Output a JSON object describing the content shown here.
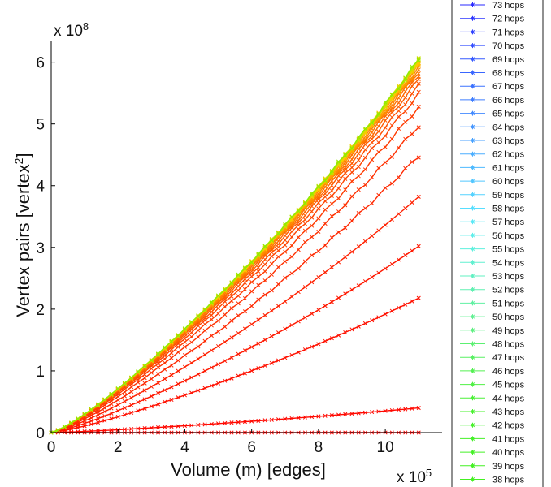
{
  "chart_data": {
    "type": "line",
    "title": "",
    "xlabel": "Volume (m) [edges]",
    "ylabel": "Vertex pairs [vertex",
    "ylabel_sup": "2",
    "ylabel_close": "]",
    "x_multiplier_text": "x 10",
    "x_multiplier_exp": "5",
    "y_multiplier_text": "x 10",
    "y_multiplier_exp": "8",
    "x_scale": 100000,
    "y_scale": 100000000,
    "xlim": [
      0,
      11.7
    ],
    "ylim": [
      0,
      6.35
    ],
    "x_ticks": [
      0,
      2,
      4,
      6,
      8,
      10
    ],
    "x_tick_labels": [
      "0",
      "2",
      "4",
      "6",
      "8",
      "10"
    ],
    "y_ticks": [
      0,
      1,
      2,
      3,
      4,
      5,
      6
    ],
    "y_tick_labels": [
      "0",
      "1",
      "2",
      "3",
      "4",
      "5",
      "6"
    ],
    "x_end": 11,
    "grid": false,
    "legend_position": "outside-right",
    "curve_final_values_1e8": [
      0.0,
      0.4,
      2.18,
      3.02,
      3.82,
      4.48,
      4.97,
      5.28,
      5.49,
      5.62,
      5.72,
      5.79,
      5.85,
      5.89,
      5.92,
      5.95,
      5.97,
      5.99,
      6.0,
      6.01,
      6.02,
      6.03,
      6.03,
      6.04
    ],
    "legend": [
      "73 hops",
      "72 hops",
      "71 hops",
      "70 hops",
      "69 hops",
      "68 hops",
      "67 hops",
      "66 hops",
      "65 hops",
      "64 hops",
      "63 hops",
      "62 hops",
      "61 hops",
      "60 hops",
      "59 hops",
      "58 hops",
      "57 hops",
      "56 hops",
      "55 hops",
      "54 hops",
      "53 hops",
      "52 hops",
      "51 hops",
      "50 hops",
      "49 hops",
      "48 hops",
      "47 hops",
      "46 hops",
      "45 hops",
      "44 hops",
      "43 hops",
      "42 hops",
      "41 hops",
      "40 hops",
      "39 hops",
      "38 hops"
    ],
    "legend_colors": [
      "#2a2aff",
      "#2d36ff",
      "#3042ff",
      "#334eff",
      "#365aff",
      "#3966ff",
      "#3c72ff",
      "#3f7eff",
      "#428aff",
      "#4596ff",
      "#48a2ff",
      "#4baeff",
      "#4ebaff",
      "#51c6ff",
      "#54d2ff",
      "#57deff",
      "#5ae8f6",
      "#5deeea",
      "#5ff0de",
      "#60f0d0",
      "#60f0c2",
      "#60f0b2",
      "#60f0a2",
      "#60f092",
      "#5ff082",
      "#5cf072",
      "#58f062",
      "#54f052",
      "#50f044",
      "#4cf038",
      "#48f02e",
      "#46f02a",
      "#44f028",
      "#44f026",
      "#44f024",
      "#44f022"
    ],
    "curve_colors": [
      "#ff0000",
      "#ff0800",
      "#ff1000",
      "#ff1800",
      "#ff2000",
      "#ff2800",
      "#ff3000",
      "#ff3a00",
      "#ff4400",
      "#ff5000",
      "#ff5c00",
      "#ff6800",
      "#ff7400",
      "#ff8000",
      "#ff8c00",
      "#ff9800",
      "#ffa400",
      "#ffb000",
      "#ffbc00",
      "#ffc800",
      "#f0d000",
      "#d8dc00",
      "#b8e400",
      "#90ec00"
    ]
  }
}
